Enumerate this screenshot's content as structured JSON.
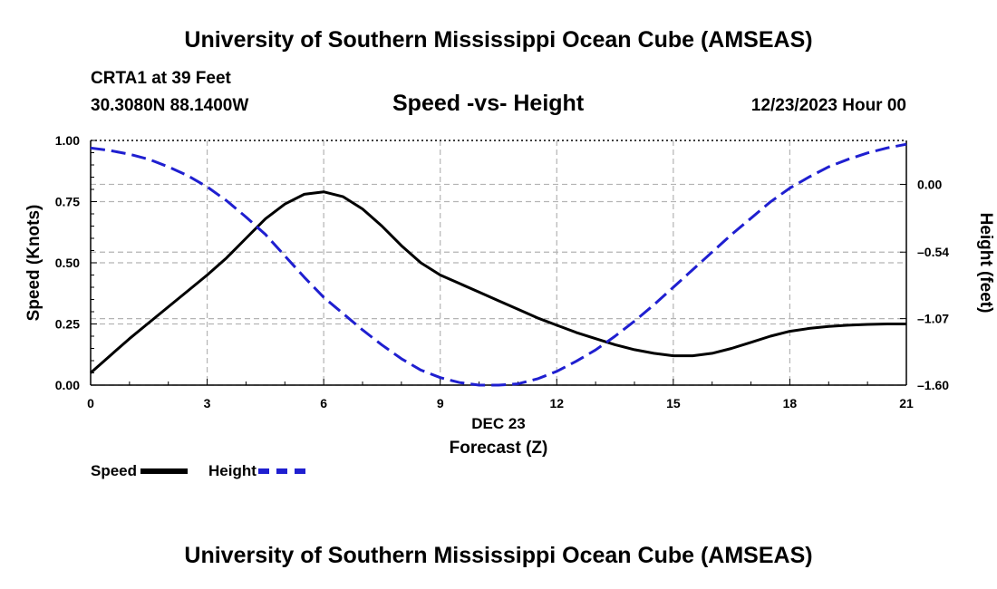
{
  "header": {
    "title": "University of Southern Mississippi Ocean Cube (AMSEAS)",
    "station": "CRTA1 at 39 Feet",
    "coords": "30.3080N  88.1400W",
    "chart_title": "Speed -vs- Height",
    "date": "12/23/2023 Hour 00"
  },
  "footer": {
    "title": "University of Southern Mississippi Ocean Cube (AMSEAS)"
  },
  "legend": {
    "speed_label": "Speed",
    "height_label": "Height"
  },
  "colors": {
    "speed": "#000000",
    "height": "#1f1fd0",
    "grid": "#b4b4b4"
  },
  "chart_data": {
    "type": "line",
    "title": "Speed -vs- Height",
    "xlabel": "Forecast (Z)",
    "xlabel_date": "DEC 23",
    "ylabel_left": "Speed (Knots)",
    "ylabel_right": "Height (feet)",
    "xlim": [
      0,
      21
    ],
    "ylim_left": [
      0,
      1.0
    ],
    "ylim_right": [
      -1.6,
      0.35
    ],
    "x_ticks": [
      0,
      3,
      6,
      9,
      12,
      15,
      18,
      21
    ],
    "x_tick_labels": [
      "0",
      "3",
      "6",
      "9",
      "12",
      "15",
      "18",
      "21"
    ],
    "y_left_ticks": [
      0,
      0.25,
      0.5,
      0.75,
      1.0
    ],
    "y_left_tick_labels": [
      "0.00",
      "0.25",
      "0.50",
      "0.75",
      "1.00"
    ],
    "y_right_ticks": [
      0.0,
      -0.54,
      -1.07,
      -1.6
    ],
    "y_right_tick_labels": [
      "0.00",
      "–0.54",
      "–1.07",
      "–1.60"
    ],
    "grid": true,
    "series": [
      {
        "name": "Speed",
        "axis": "left",
        "style": "solid",
        "x": [
          0,
          0.5,
          1,
          1.5,
          2,
          2.5,
          3,
          3.5,
          4,
          4.5,
          5,
          5.5,
          6,
          6.5,
          7,
          7.5,
          8,
          8.5,
          9,
          9.5,
          10,
          10.5,
          11,
          11.5,
          12,
          12.5,
          13,
          13.5,
          14,
          14.5,
          15,
          15.5,
          16,
          16.5,
          17,
          17.5,
          18,
          18.5,
          19,
          19.5,
          20,
          20.5,
          21
        ],
        "values": [
          0.05,
          0.12,
          0.19,
          0.255,
          0.32,
          0.385,
          0.45,
          0.52,
          0.6,
          0.68,
          0.74,
          0.78,
          0.79,
          0.77,
          0.72,
          0.65,
          0.57,
          0.5,
          0.45,
          0.415,
          0.38,
          0.345,
          0.31,
          0.275,
          0.245,
          0.215,
          0.19,
          0.165,
          0.145,
          0.13,
          0.12,
          0.12,
          0.13,
          0.15,
          0.175,
          0.2,
          0.22,
          0.232,
          0.24,
          0.245,
          0.248,
          0.25,
          0.25
        ]
      },
      {
        "name": "Height",
        "axis": "right",
        "style": "dashed",
        "x": [
          0,
          0.5,
          1,
          1.5,
          2,
          2.5,
          3,
          3.5,
          4,
          4.5,
          5,
          5.5,
          6,
          6.5,
          7,
          7.5,
          8,
          8.5,
          9,
          9.5,
          10,
          10.5,
          11,
          11.5,
          12,
          12.5,
          13,
          13.5,
          14,
          14.5,
          15,
          15.5,
          16,
          16.5,
          17,
          17.5,
          18,
          18.5,
          19,
          19.5,
          20,
          20.5,
          21
        ],
        "values": [
          0.29,
          0.27,
          0.24,
          0.2,
          0.14,
          0.07,
          -0.02,
          -0.13,
          -0.26,
          -0.4,
          -0.57,
          -0.74,
          -0.9,
          -1.03,
          -1.16,
          -1.28,
          -1.39,
          -1.48,
          -1.54,
          -1.58,
          -1.6,
          -1.6,
          -1.59,
          -1.55,
          -1.49,
          -1.41,
          -1.32,
          -1.21,
          -1.09,
          -0.96,
          -0.82,
          -0.68,
          -0.54,
          -0.4,
          -0.27,
          -0.14,
          -0.03,
          0.06,
          0.14,
          0.2,
          0.25,
          0.29,
          0.32
        ]
      }
    ]
  }
}
